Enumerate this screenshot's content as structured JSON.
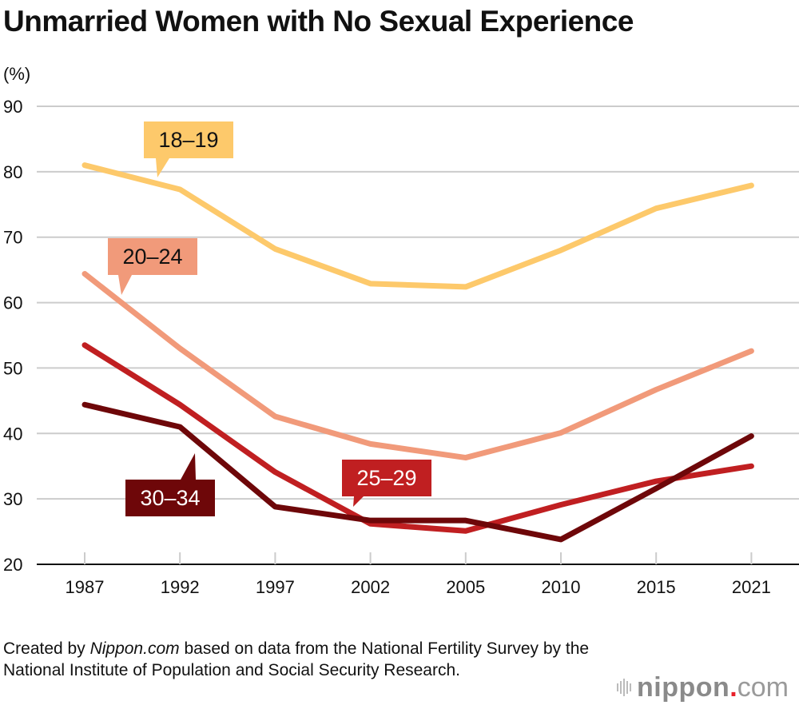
{
  "chart_data": {
    "type": "line",
    "title": "Unmarried Women with No Sexual Experience",
    "ylabel": "(%)",
    "xlabel": "",
    "ylim": [
      20,
      90
    ],
    "yticks": [
      20,
      30,
      40,
      50,
      60,
      70,
      80,
      90
    ],
    "grid": true,
    "categories": [
      "1987",
      "1992",
      "1997",
      "2002",
      "2005",
      "2010",
      "2015",
      "2021"
    ],
    "series": [
      {
        "name": "18–19",
        "color": "#fdc96b",
        "label_text_color": "#111111",
        "values": [
          81.0,
          77.3,
          68.2,
          62.9,
          62.4,
          68.0,
          74.4,
          77.9
        ]
      },
      {
        "name": "20–24",
        "color": "#f19a7a",
        "label_text_color": "#111111",
        "values": [
          64.4,
          53.0,
          42.6,
          38.4,
          36.3,
          40.1,
          46.7,
          52.6
        ]
      },
      {
        "name": "25–29",
        "color": "#c01f21",
        "label_text_color": "#ffffff",
        "values": [
          53.5,
          44.4,
          34.1,
          26.2,
          25.1,
          29.1,
          32.7,
          35.0
        ]
      },
      {
        "name": "30–34",
        "color": "#6e0709",
        "label_text_color": "#ffffff",
        "values": [
          44.4,
          41.0,
          28.8,
          26.7,
          26.7,
          23.8,
          31.6,
          39.6
        ]
      }
    ]
  },
  "footer": {
    "note_prefix": "Created by ",
    "note_italic": "Nippon.com",
    "note_suffix": " based on data from the National Fertility Survey by the National Institute of Population and Social Security Research.",
    "logo_word": "nippon",
    "logo_dot": ".",
    "logo_com": "com"
  }
}
